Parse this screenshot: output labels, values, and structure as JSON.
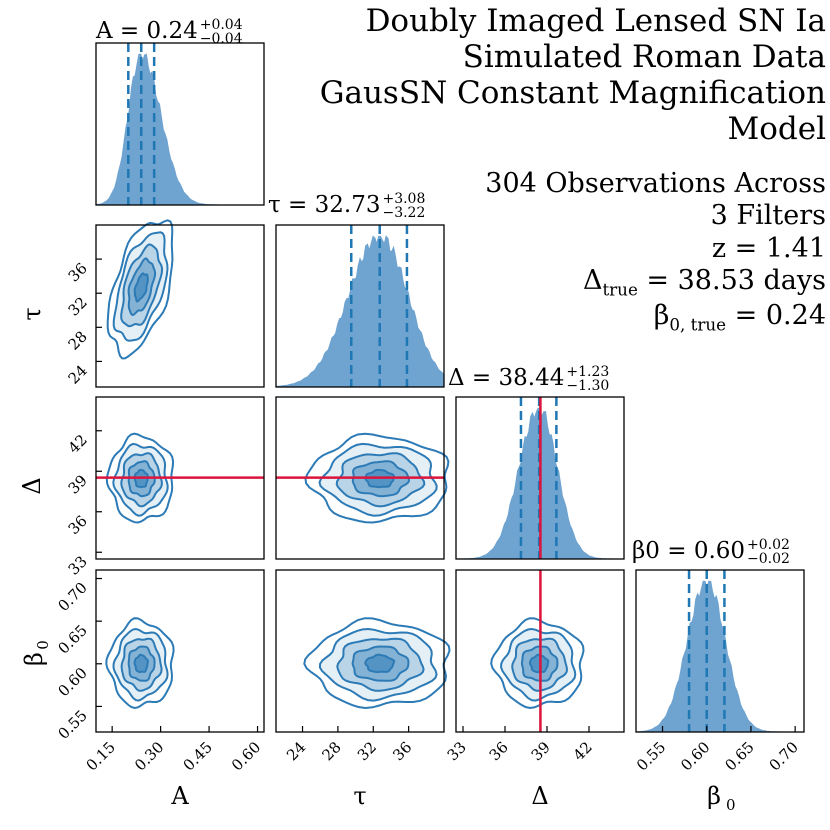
{
  "title": {
    "lines": [
      "Doubly Imaged Lensed SN Ia",
      "Simulated Roman Data",
      "GausSN Constant Magnification",
      "Model"
    ]
  },
  "info": {
    "obs_line1": "304 Observations Across",
    "obs_line2": "3 Filters",
    "z_label": "z = ",
    "z_value": "1.41",
    "delta_true_label": "Δ",
    "delta_true_sub": "true",
    "delta_true_value": " = 38.53 days",
    "beta_true_label": "β",
    "beta_true_sub": "0, true",
    "beta_true_value": " = 0.24"
  },
  "colors": {
    "fill": "#6fa3d0",
    "contour": "#2d7bb6",
    "quantile": "#1f77b4",
    "truth": "#dc143c"
  },
  "chart_data": {
    "type": "corner",
    "parameters": [
      {
        "name": "A",
        "axis_label": "A",
        "median": 0.24,
        "plus": "+0.04",
        "minus": "−0.04",
        "title": "A = 0.24",
        "q16": 0.2,
        "q84": 0.28,
        "range": [
          0.1,
          0.62
        ],
        "ticks": [
          0.15,
          0.3,
          0.45,
          0.6
        ],
        "tick_labels": [
          "0.15",
          "0.30",
          "0.45",
          "0.60"
        ],
        "truth": null
      },
      {
        "name": "tau",
        "axis_label": "τ",
        "median": 32.73,
        "plus": "+3.08",
        "minus": "−3.22",
        "title": "τ = 32.73",
        "q16": 29.51,
        "q84": 35.81,
        "range": [
          21.0,
          40.0
        ],
        "ticks": [
          24,
          28,
          32,
          36
        ],
        "tick_labels": [
          "24",
          "28",
          "32",
          "36"
        ],
        "truth": null
      },
      {
        "name": "delta",
        "axis_label": "Δ",
        "median": 38.44,
        "plus": "+1.23",
        "minus": "−1.30",
        "title": "Δ = 38.44",
        "q16": 37.14,
        "q84": 39.67,
        "range": [
          32.5,
          44.5
        ],
        "ticks": [
          33,
          36,
          39,
          42
        ],
        "tick_labels": [
          "33",
          "36",
          "39",
          "42"
        ],
        "truth": 38.53
      },
      {
        "name": "beta0",
        "axis_label": "β0",
        "median": 0.6,
        "plus": "+0.02",
        "minus": "−0.02",
        "title": "β0 = 0.60",
        "q16": 0.58,
        "q84": 0.62,
        "range": [
          0.52,
          0.71
        ],
        "ticks": [
          0.55,
          0.6,
          0.65,
          0.7
        ],
        "tick_labels": [
          "0.55",
          "0.60",
          "0.65",
          "0.70"
        ],
        "truth": null
      }
    ],
    "panels": [
      {
        "row": 1,
        "col": 0,
        "correlation": 0.5
      },
      {
        "row": 2,
        "col": 0,
        "correlation": 0.0
      },
      {
        "row": 2,
        "col": 1,
        "correlation": 0.0
      },
      {
        "row": 3,
        "col": 0,
        "correlation": 0.0
      },
      {
        "row": 3,
        "col": 1,
        "correlation": 0.0
      },
      {
        "row": 3,
        "col": 2,
        "correlation": 0.0
      }
    ],
    "contour_levels_sigma": [
      0.5,
      1.0,
      1.5,
      2.0,
      2.5
    ]
  }
}
